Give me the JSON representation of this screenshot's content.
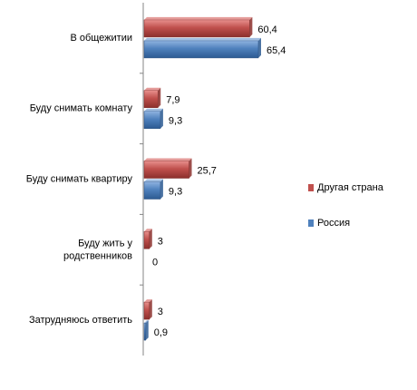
{
  "chart_data": {
    "type": "bar",
    "orientation": "horizontal",
    "categories": [
      "В общежитии",
      "Буду снимать комнату",
      "Буду снимать квартиру",
      "Буду жить у родственников",
      "Затрудняюсь ответить"
    ],
    "category_lines": [
      [
        "В общежитии"
      ],
      [
        "Буду снимать комнату"
      ],
      [
        "Буду снимать квартиру"
      ],
      [
        "Буду жить у",
        "родственников"
      ],
      [
        "Затрудняюсь ответить"
      ]
    ],
    "series": [
      {
        "name": "Другая страна",
        "values": [
          60.4,
          7.9,
          25.7,
          3,
          3
        ],
        "labels": [
          "60,4",
          "7,9",
          "25,7",
          "3",
          "3"
        ],
        "color": "#c0504d"
      },
      {
        "name": "Россия",
        "values": [
          65.4,
          9.3,
          9.3,
          0,
          0.9
        ],
        "labels": [
          "65,4",
          "9,3",
          "9,3",
          "0",
          "0,9"
        ],
        "color": "#4f81bd"
      }
    ],
    "xlim": [
      0,
      70
    ],
    "grid": false,
    "legend_position": "right"
  }
}
